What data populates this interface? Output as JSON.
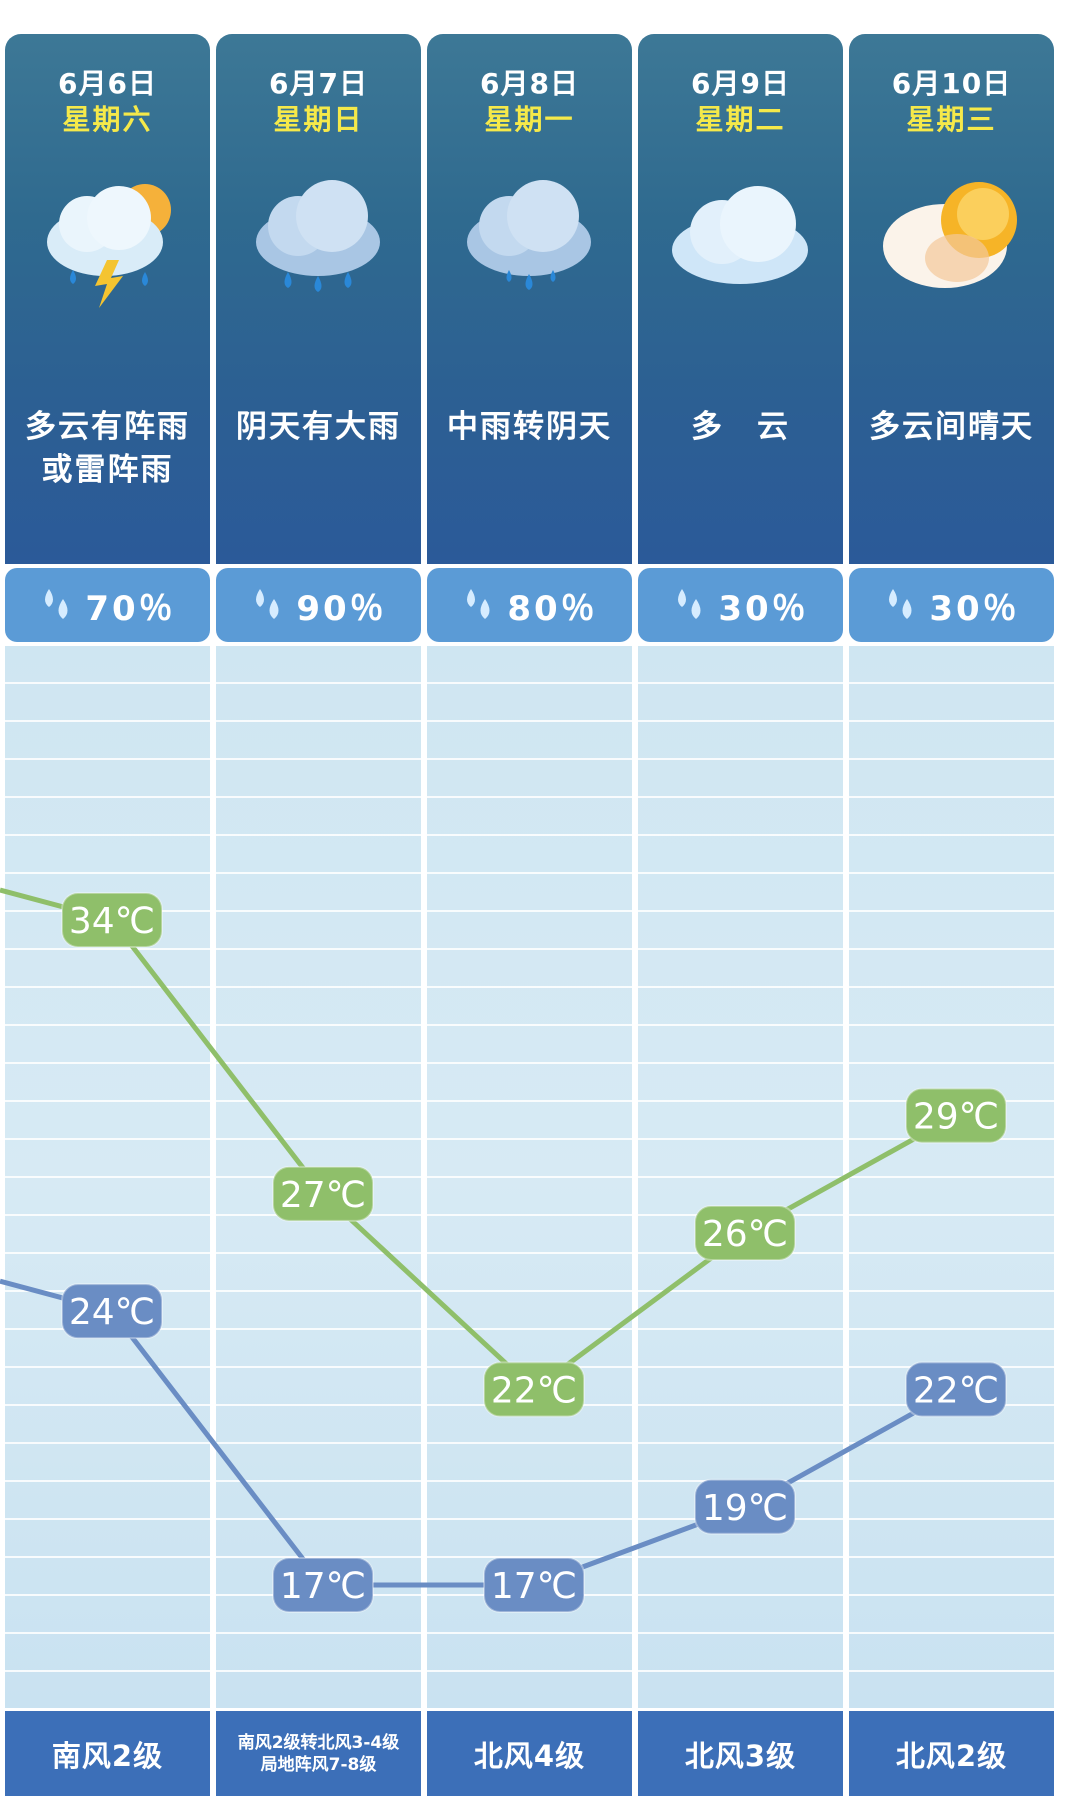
{
  "days": [
    {
      "date": "6月6日",
      "weekday": "星期六",
      "desc": "多云有阵雨或雷阵雨",
      "rain": "70％",
      "wind": "南风2级",
      "icon": "thunder-shower-icon"
    },
    {
      "date": "6月7日",
      "weekday": "星期日",
      "desc": "阴天有大雨",
      "rain": "90％",
      "wind": "南风2级转北风3-4级\n局地阵风7-8级",
      "icon": "heavy-rain-icon"
    },
    {
      "date": "6月8日",
      "weekday": "星期一",
      "desc": "中雨转阴天",
      "rain": "80％",
      "wind": "北风4级",
      "icon": "moderate-rain-icon"
    },
    {
      "date": "6月9日",
      "weekday": "星期二",
      "desc": "多　云",
      "rain": "30％",
      "wind": "北风3级",
      "icon": "cloudy-icon"
    },
    {
      "date": "6月10日",
      "weekday": "星期三",
      "desc": "多云间晴天",
      "rain": "30％",
      "wind": "北风2级",
      "icon": "partly-sunny-icon"
    }
  ],
  "colors": {
    "high_line": "#8fbf6a",
    "high_label": "#8fbf6a",
    "low_line": "#6a8dc4",
    "low_label": "#6a8dc4",
    "accent_weekday": "#f5e94a",
    "rain_box": "#5b9bd6",
    "wind_box": "#3c6fb8"
  },
  "chart_data": {
    "type": "line",
    "categories": [
      "6月6日",
      "6月7日",
      "6月8日",
      "6月9日",
      "6月10日"
    ],
    "unit": "℃",
    "series": [
      {
        "key": "high",
        "values": [
          34,
          27,
          22,
          26,
          29
        ],
        "labels": [
          "34℃",
          "27℃",
          "22℃",
          "26℃",
          "29℃"
        ]
      },
      {
        "key": "low",
        "values": [
          24,
          17,
          17,
          19,
          22
        ],
        "labels": [
          "24℃",
          "17℃",
          "17℃",
          "19℃",
          "22℃"
        ]
      }
    ]
  }
}
